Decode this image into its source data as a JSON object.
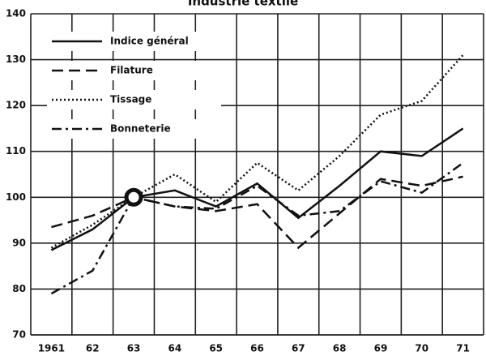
{
  "chart_data": {
    "type": "line",
    "title": "Industrie textile",
    "categories": [
      "1961",
      "62",
      "63",
      "64",
      "65",
      "66",
      "67",
      "68",
      "69",
      "70",
      "71"
    ],
    "series": [
      {
        "name": "Indice général",
        "color": "#111111",
        "style": "solid",
        "values": [
          88.5,
          93,
          100,
          101.5,
          98,
          103,
          95.5,
          102.5,
          110,
          109,
          115
        ]
      },
      {
        "name": "Filature",
        "color": "#111111",
        "style": "dashed",
        "values": [
          93.5,
          96,
          100,
          98,
          97,
          98.5,
          89,
          96.5,
          104,
          102.5,
          104.5
        ]
      },
      {
        "name": "Tissage",
        "color": "#111111",
        "style": "dotted",
        "values": [
          89,
          94,
          100,
          105,
          99,
          107.5,
          101.5,
          109,
          118,
          121,
          131
        ]
      },
      {
        "name": "Bonneterie",
        "color": "#111111",
        "style": "dashdot",
        "values": [
          79,
          84,
          100,
          98,
          97.5,
          102.5,
          96,
          97,
          103.5,
          101,
          107.5
        ]
      }
    ],
    "ylim": [
      70,
      140
    ],
    "yticks": [
      70,
      80,
      90,
      100,
      110,
      120,
      130,
      140
    ],
    "grid": true,
    "legend": "top-left"
  }
}
